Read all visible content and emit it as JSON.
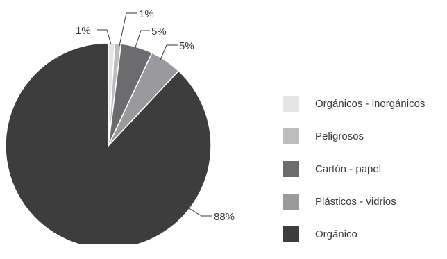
{
  "chart_data": {
    "type": "pie",
    "slices": [
      {
        "label": "Orgánicos - inorgánicos",
        "value": 1,
        "value_label": "1%",
        "color": "#e4e4e4"
      },
      {
        "label": "Peligrosos",
        "value": 1,
        "value_label": "1%",
        "color": "#bdbdbf"
      },
      {
        "label": "Cartón - papel",
        "value": 5,
        "value_label": "5%",
        "color": "#6c6c6e"
      },
      {
        "label": "Plásticos - vidrios",
        "value": 5,
        "value_label": "5%",
        "color": "#9a9a9c"
      },
      {
        "label": "Orgánico",
        "value": 88,
        "value_label": "88%",
        "color": "#3d3d3d"
      }
    ],
    "legend_position": "right"
  }
}
